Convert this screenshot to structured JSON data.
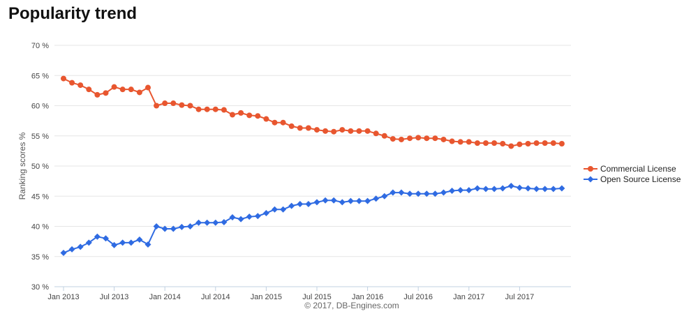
{
  "page": {
    "title": "Popularity trend"
  },
  "chart_data": {
    "type": "line",
    "title": "Popularity trend",
    "xlabel": "",
    "ylabel": "Ranking scores %",
    "ylim": [
      30,
      70
    ],
    "y_ticks": [
      30,
      35,
      40,
      45,
      50,
      55,
      60,
      65,
      70
    ],
    "y_tick_suffix": " %",
    "x_ticks": [
      {
        "index": 0,
        "label": "Jan 2013"
      },
      {
        "index": 6,
        "label": "Jul 2013"
      },
      {
        "index": 12,
        "label": "Jan 2014"
      },
      {
        "index": 18,
        "label": "Jul 2014"
      },
      {
        "index": 24,
        "label": "Jan 2015"
      },
      {
        "index": 30,
        "label": "Jul 2015"
      },
      {
        "index": 36,
        "label": "Jan 2016"
      },
      {
        "index": 42,
        "label": "Jul 2016"
      },
      {
        "index": 48,
        "label": "Jan 2017"
      },
      {
        "index": 54,
        "label": "Jul 2017"
      }
    ],
    "x_count": 60,
    "grid": "horizontal",
    "legend_position": "right",
    "credit": "© 2017, DB-Engines.com",
    "series": [
      {
        "name": "Commercial License",
        "color": "#e8562f",
        "marker": "circle",
        "values": [
          64.5,
          63.8,
          63.4,
          62.7,
          61.8,
          62.1,
          63.1,
          62.7,
          62.7,
          62.2,
          63.0,
          60.0,
          60.4,
          60.4,
          60.1,
          60.0,
          59.4,
          59.4,
          59.4,
          59.3,
          58.5,
          58.8,
          58.4,
          58.3,
          57.8,
          57.2,
          57.2,
          56.6,
          56.3,
          56.3,
          56.0,
          55.8,
          55.7,
          56.0,
          55.8,
          55.8,
          55.8,
          55.4,
          55.0,
          54.5,
          54.4,
          54.6,
          54.7,
          54.6,
          54.6,
          54.4,
          54.1,
          54.0,
          54.0,
          53.8,
          53.8,
          53.8,
          53.7,
          53.3,
          53.6,
          53.7,
          53.8,
          53.8,
          53.8,
          53.7
        ]
      },
      {
        "name": "Open Source License",
        "color": "#2f6be2",
        "marker": "diamond",
        "values": [
          35.6,
          36.2,
          36.6,
          37.3,
          38.3,
          38.0,
          36.9,
          37.3,
          37.3,
          37.8,
          37.0,
          40.0,
          39.6,
          39.6,
          39.9,
          40.0,
          40.6,
          40.6,
          40.6,
          40.7,
          41.5,
          41.2,
          41.6,
          41.7,
          42.2,
          42.8,
          42.8,
          43.4,
          43.7,
          43.7,
          44.0,
          44.3,
          44.3,
          44.0,
          44.2,
          44.2,
          44.2,
          44.6,
          45.0,
          45.6,
          45.6,
          45.4,
          45.4,
          45.4,
          45.4,
          45.6,
          45.9,
          46.0,
          46.0,
          46.3,
          46.2,
          46.2,
          46.3,
          46.7,
          46.4,
          46.3,
          46.2,
          46.2,
          46.2,
          46.3
        ]
      }
    ]
  }
}
